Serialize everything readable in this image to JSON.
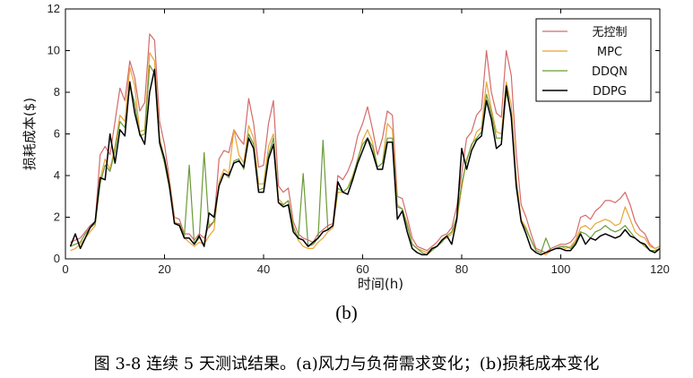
{
  "subfigure_label": "(b)",
  "caption": "图 3-8  连续 5 天测试结果。(a)风力与负荷需求变化；(b)损耗成本变化",
  "chart_data": {
    "type": "line",
    "xlabel": "时间(h)",
    "ylabel": "损耗成本($)",
    "xlim": [
      0,
      120
    ],
    "ylim": [
      0,
      12
    ],
    "xticks": [
      0,
      20,
      40,
      60,
      80,
      100,
      120
    ],
    "yticks": [
      0,
      2,
      4,
      6,
      8,
      10,
      12
    ],
    "grid": false,
    "legend_position": "top-right",
    "x": [
      1,
      2,
      3,
      4,
      5,
      6,
      7,
      8,
      9,
      10,
      11,
      12,
      13,
      14,
      15,
      16,
      17,
      18,
      19,
      20,
      21,
      22,
      23,
      24,
      25,
      26,
      27,
      28,
      29,
      30,
      31,
      32,
      33,
      34,
      35,
      36,
      37,
      38,
      39,
      40,
      41,
      42,
      43,
      44,
      45,
      46,
      47,
      48,
      49,
      50,
      51,
      52,
      53,
      54,
      55,
      56,
      57,
      58,
      59,
      60,
      61,
      62,
      63,
      64,
      65,
      66,
      67,
      68,
      69,
      70,
      71,
      72,
      73,
      74,
      75,
      76,
      77,
      78,
      79,
      80,
      81,
      82,
      83,
      84,
      85,
      86,
      87,
      88,
      89,
      90,
      91,
      92,
      93,
      94,
      95,
      96,
      97,
      98,
      99,
      100,
      101,
      102,
      103,
      104,
      105,
      106,
      107,
      108,
      109,
      110,
      111,
      112,
      113,
      114,
      115,
      116,
      117,
      118,
      119,
      120
    ],
    "series": [
      {
        "name": "无控制",
        "color": "#d46a6a",
        "values": [
          0.8,
          0.9,
          1.0,
          1.3,
          1.6,
          1.8,
          5.0,
          5.4,
          5.0,
          6.6,
          8.2,
          7.6,
          9.5,
          8.7,
          7.1,
          7.5,
          10.8,
          10.5,
          6.6,
          5.5,
          3.8,
          2.0,
          1.9,
          1.2,
          1.2,
          0.9,
          1.2,
          1.0,
          1.6,
          1.8,
          4.8,
          5.2,
          5.1,
          6.2,
          5.8,
          5.5,
          7.7,
          6.5,
          4.4,
          4.5,
          6.5,
          7.6,
          3.5,
          3.2,
          3.4,
          1.8,
          1.2,
          1.0,
          0.9,
          0.8,
          1.2,
          1.4,
          1.6,
          1.7,
          4.0,
          3.8,
          4.2,
          4.8,
          5.9,
          6.5,
          7.3,
          6.2,
          5.0,
          5.8,
          7.1,
          6.9,
          3.0,
          2.9,
          2.0,
          1.0,
          0.6,
          0.5,
          0.4,
          0.6,
          0.8,
          1.1,
          1.2,
          1.5,
          2.5,
          4.1,
          5.8,
          6.1,
          6.9,
          7.2,
          10.0,
          8.0,
          7.0,
          6.8,
          10.0,
          8.8,
          5.1,
          2.6,
          2.0,
          1.2,
          0.5,
          0.4,
          0.3,
          0.5,
          0.6,
          0.7,
          0.7,
          0.8,
          1.1,
          2.0,
          2.1,
          1.9,
          2.3,
          2.5,
          2.8,
          2.8,
          2.7,
          2.9,
          3.2,
          2.6,
          1.8,
          1.4,
          1.2,
          0.7,
          0.5,
          0.6
        ]
      },
      {
        "name": "MPC",
        "color": "#e8a438",
        "values": [
          0.4,
          0.5,
          0.7,
          1.0,
          1.3,
          1.6,
          3.8,
          4.8,
          4.3,
          5.4,
          6.9,
          6.6,
          9.2,
          8.3,
          6.1,
          6.2,
          9.9,
          9.5,
          5.8,
          4.8,
          3.7,
          1.8,
          1.6,
          1.0,
          0.8,
          0.6,
          0.8,
          0.7,
          1.1,
          1.4,
          3.7,
          4.3,
          4.1,
          6.2,
          5.0,
          4.6,
          6.4,
          5.8,
          3.6,
          3.6,
          5.4,
          6.0,
          2.9,
          2.6,
          2.8,
          1.6,
          0.9,
          0.6,
          0.5,
          0.5,
          0.8,
          1.0,
          1.3,
          1.5,
          3.2,
          3.2,
          3.4,
          4.0,
          4.7,
          5.7,
          6.2,
          5.6,
          4.4,
          4.6,
          6.5,
          6.2,
          2.6,
          2.4,
          1.7,
          0.7,
          0.5,
          0.4,
          0.3,
          0.5,
          0.6,
          0.9,
          1.0,
          1.2,
          1.8,
          3.4,
          4.8,
          5.4,
          6.1,
          6.3,
          8.5,
          7.2,
          6.1,
          6.0,
          8.5,
          7.4,
          3.9,
          1.9,
          1.5,
          0.9,
          0.4,
          0.3,
          0.2,
          0.4,
          0.5,
          0.6,
          0.5,
          0.6,
          0.9,
          1.5,
          1.6,
          1.4,
          1.7,
          1.8,
          1.9,
          1.8,
          1.6,
          1.7,
          2.5,
          1.9,
          1.3,
          1.1,
          1.0,
          0.6,
          0.5,
          0.6
        ]
      },
      {
        "name": "DDQN",
        "color": "#6a9a38",
        "values": [
          0.6,
          0.7,
          0.8,
          1.2,
          1.5,
          1.7,
          3.6,
          4.5,
          4.2,
          5.2,
          6.6,
          6.3,
          8.3,
          7.5,
          5.9,
          6.0,
          9.3,
          8.9,
          5.5,
          4.6,
          3.4,
          1.7,
          1.7,
          1.1,
          4.5,
          0.7,
          1.0,
          5.1,
          1.5,
          1.8,
          3.5,
          4.1,
          3.9,
          4.7,
          4.8,
          4.3,
          6.0,
          5.5,
          3.3,
          3.4,
          5.0,
          5.8,
          2.7,
          2.6,
          2.8,
          1.5,
          1.0,
          4.1,
          0.6,
          0.7,
          1.0,
          5.7,
          1.4,
          1.6,
          3.4,
          3.2,
          3.4,
          3.9,
          4.8,
          5.5,
          5.8,
          5.4,
          4.4,
          4.6,
          5.8,
          5.8,
          2.5,
          2.4,
          1.6,
          0.7,
          0.5,
          0.3,
          0.2,
          0.4,
          0.6,
          0.8,
          1.1,
          1.3,
          2.0,
          3.6,
          4.7,
          5.5,
          5.8,
          6.1,
          7.9,
          7.0,
          5.8,
          5.8,
          8.0,
          7.0,
          3.6,
          1.8,
          1.4,
          0.9,
          0.4,
          0.3,
          1.0,
          0.4,
          0.5,
          0.6,
          0.6,
          0.5,
          0.8,
          1.3,
          1.2,
          1.0,
          1.3,
          1.4,
          1.6,
          1.4,
          1.3,
          1.4,
          1.6,
          1.3,
          1.0,
          0.8,
          0.6,
          0.4,
          0.4,
          0.5
        ]
      },
      {
        "name": "DDPG",
        "color": "#000000",
        "values": [
          0.6,
          1.2,
          0.5,
          1.0,
          1.5,
          1.8,
          3.9,
          3.8,
          6.0,
          4.6,
          6.2,
          5.9,
          8.5,
          7.0,
          6.0,
          5.5,
          8.0,
          9.1,
          5.6,
          4.8,
          3.5,
          1.7,
          1.6,
          1.0,
          1.0,
          0.7,
          1.1,
          0.6,
          2.2,
          2.0,
          3.5,
          4.1,
          4.0,
          4.6,
          4.7,
          4.4,
          5.8,
          5.3,
          3.2,
          3.2,
          4.8,
          5.5,
          2.7,
          2.5,
          2.6,
          1.3,
          1.0,
          0.9,
          0.6,
          0.8,
          1.0,
          1.3,
          1.4,
          1.6,
          3.7,
          3.2,
          3.1,
          3.8,
          4.6,
          5.2,
          5.8,
          5.1,
          4.3,
          4.3,
          5.6,
          5.6,
          1.9,
          2.3,
          1.3,
          0.5,
          0.3,
          0.2,
          0.2,
          0.5,
          0.6,
          0.9,
          1.1,
          0.7,
          1.9,
          5.3,
          4.3,
          5.2,
          5.7,
          5.9,
          7.6,
          6.7,
          5.3,
          5.5,
          8.3,
          6.8,
          3.5,
          1.8,
          1.2,
          0.5,
          0.3,
          0.2,
          0.3,
          0.4,
          0.5,
          0.5,
          0.4,
          0.4,
          0.7,
          1.2,
          0.7,
          1.0,
          0.9,
          1.1,
          1.2,
          1.1,
          1.0,
          1.1,
          1.4,
          1.1,
          1.0,
          0.8,
          0.7,
          0.4,
          0.3,
          0.5
        ]
      }
    ]
  }
}
